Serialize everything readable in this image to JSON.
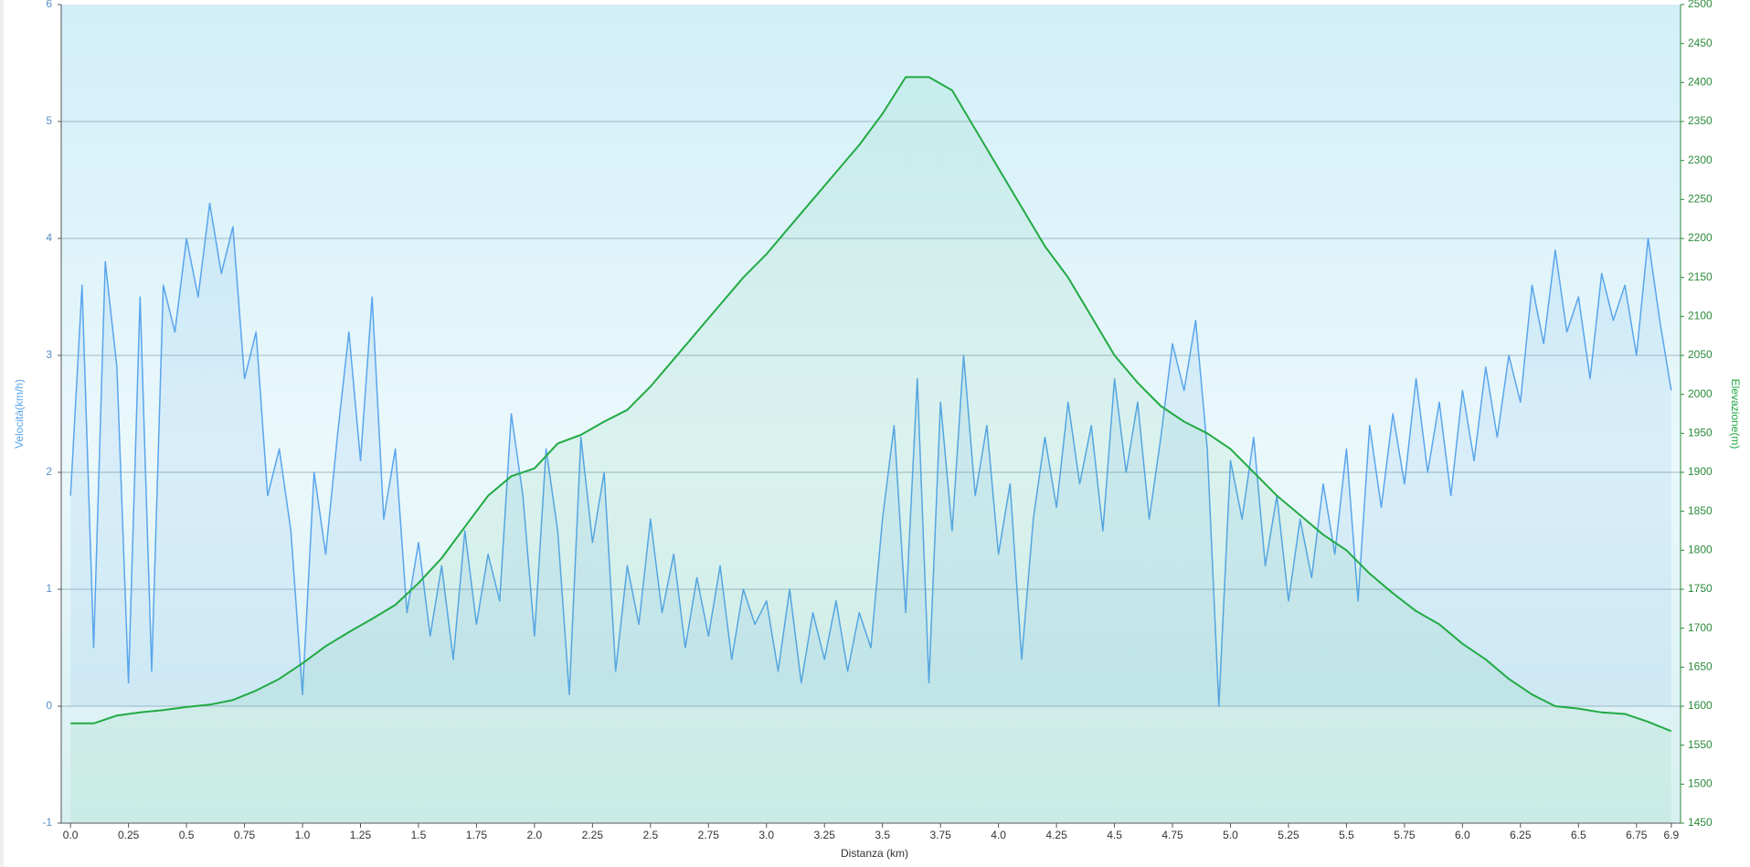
{
  "chart_data": {
    "type": "line",
    "xlabel": "Distanza  (km)",
    "ylabel": "Velocità(km/h)",
    "y2label": "Elevazione(m)",
    "xlim": [
      -0.04,
      6.94
    ],
    "xticks": [
      {
        "value": 0,
        "label": "0.0"
      },
      0.25,
      0.5,
      0.75,
      {
        "value": 1,
        "label": "1.0"
      },
      1.25,
      1.5,
      1.75,
      {
        "value": 2,
        "label": "2.0"
      },
      2.25,
      2.5,
      2.75,
      {
        "value": 3,
        "label": "3.0"
      },
      3.25,
      3.5,
      3.75,
      {
        "value": 4,
        "label": "4.0"
      },
      4.25,
      4.5,
      4.75,
      {
        "value": 5,
        "label": "5.0"
      },
      5.25,
      5.5,
      5.75,
      {
        "value": 6,
        "label": "6.0"
      },
      6.25,
      6.5,
      6.75,
      6.9
    ],
    "ylim": [
      -1,
      6
    ],
    "yticks": [
      -1,
      0,
      1,
      2,
      3,
      4,
      5,
      6
    ],
    "y2lim": [
      1450,
      2500
    ],
    "y2ticks": [
      1450,
      1500,
      1550,
      1600,
      1650,
      1700,
      1750,
      1800,
      1850,
      1900,
      1950,
      2000,
      2050,
      2100,
      2150,
      2200,
      2250,
      2300,
      2350,
      2400,
      2450,
      2500
    ],
    "grid": true,
    "series": [
      {
        "color": "#5aa5ec",
        "x": [
          0,
          0.05,
          0.1,
          0.15,
          0.2,
          0.25,
          0.3,
          0.35,
          0.4,
          0.45,
          0.5,
          0.55,
          0.6,
          0.65,
          0.7,
          0.75,
          0.8,
          0.85,
          0.9,
          0.95,
          1,
          1.05,
          1.1,
          1.15,
          1.2,
          1.25,
          1.3,
          1.35,
          1.4,
          1.45,
          1.5,
          1.55,
          1.6,
          1.65,
          1.7,
          1.75,
          1.8,
          1.85,
          1.9,
          1.95,
          2,
          2.05,
          2.1,
          2.15,
          2.2,
          2.25,
          2.3,
          2.35,
          2.4,
          2.45,
          2.5,
          2.55,
          2.6,
          2.65,
          2.7,
          2.75,
          2.8,
          2.85,
          2.9,
          2.95,
          3,
          3.05,
          3.1,
          3.15,
          3.2,
          3.25,
          3.3,
          3.35,
          3.4,
          3.45,
          3.5,
          3.55,
          3.6,
          3.65,
          3.7,
          3.75,
          3.8,
          3.85,
          3.9,
          3.95,
          4,
          4.05,
          4.1,
          4.15,
          4.2,
          4.25,
          4.3,
          4.35,
          4.4,
          4.45,
          4.5,
          4.55,
          4.6,
          4.65,
          4.7,
          4.75,
          4.8,
          4.85,
          4.9,
          4.95,
          5,
          5.05,
          5.1,
          5.15,
          5.2,
          5.25,
          5.3,
          5.35,
          5.4,
          5.45,
          5.5,
          5.55,
          5.6,
          5.65,
          5.7,
          5.75,
          5.8,
          5.85,
          5.9,
          5.95,
          6,
          6.05,
          6.1,
          6.15,
          6.2,
          6.25,
          6.3,
          6.35,
          6.4,
          6.45,
          6.5,
          6.55,
          6.6,
          6.65,
          6.7,
          6.75,
          6.8,
          6.85,
          6.9
        ],
        "values": [
          1.8,
          3.6,
          0.5,
          3.8,
          2.9,
          0.2,
          3.5,
          0.3,
          3.6,
          3.2,
          4.0,
          3.5,
          4.3,
          3.7,
          4.1,
          2.8,
          3.2,
          1.8,
          2.2,
          1.5,
          0.1,
          2.0,
          1.3,
          2.3,
          3.2,
          2.1,
          3.5,
          1.6,
          2.2,
          0.8,
          1.4,
          0.6,
          1.2,
          0.4,
          1.5,
          0.7,
          1.3,
          0.9,
          2.5,
          1.8,
          0.6,
          2.2,
          1.5,
          0.1,
          2.3,
          1.4,
          2.0,
          0.3,
          1.2,
          0.7,
          1.6,
          0.8,
          1.3,
          0.5,
          1.1,
          0.6,
          1.2,
          0.4,
          1.0,
          0.7,
          0.9,
          0.3,
          1.0,
          0.2,
          0.8,
          0.4,
          0.9,
          0.3,
          0.8,
          0.5,
          1.6,
          2.4,
          0.8,
          2.8,
          0.2,
          2.6,
          1.5,
          3.0,
          1.8,
          2.4,
          1.3,
          1.9,
          0.4,
          1.6,
          2.3,
          1.7,
          2.6,
          1.9,
          2.4,
          1.5,
          2.8,
          2.0,
          2.6,
          1.6,
          2.3,
          3.1,
          2.7,
          3.3,
          2.2,
          0.0,
          2.1,
          1.6,
          2.3,
          1.2,
          1.8,
          0.9,
          1.6,
          1.1,
          1.9,
          1.3,
          2.2,
          0.9,
          2.4,
          1.7,
          2.5,
          1.9,
          2.8,
          2.0,
          2.6,
          1.8,
          2.7,
          2.1,
          2.9,
          2.3,
          3.0,
          2.6,
          3.6,
          3.1,
          3.9,
          3.2,
          3.5,
          2.8,
          3.7,
          3.3,
          3.6,
          3.0,
          4.0,
          3.3,
          2.7
        ]
      },
      {
        "color": "#22aa44",
        "axis": "y2",
        "x": [
          0,
          0.1,
          0.2,
          0.3,
          0.4,
          0.5,
          0.6,
          0.7,
          0.8,
          0.9,
          1,
          1.1,
          1.2,
          1.3,
          1.4,
          1.5,
          1.6,
          1.7,
          1.8,
          1.9,
          2,
          2.1,
          2.2,
          2.3,
          2.4,
          2.5,
          2.6,
          2.7,
          2.8,
          2.9,
          3,
          3.1,
          3.2,
          3.3,
          3.4,
          3.5,
          3.6,
          3.7,
          3.8,
          3.9,
          4,
          4.1,
          4.2,
          4.3,
          4.4,
          4.5,
          4.6,
          4.7,
          4.8,
          4.9,
          5,
          5.1,
          5.2,
          5.3,
          5.4,
          5.5,
          5.6,
          5.7,
          5.8,
          5.9,
          6,
          6.1,
          6.2,
          6.3,
          6.4,
          6.5,
          6.6,
          6.7,
          6.8,
          6.9
        ],
        "values": [
          1578,
          1578,
          1588,
          1592,
          1595,
          1599,
          1602,
          1608,
          1620,
          1635,
          1655,
          1677,
          1695,
          1712,
          1730,
          1758,
          1790,
          1830,
          1870,
          1895,
          1905,
          1937,
          1948,
          1965,
          1980,
          2010,
          2045,
          2080,
          2115,
          2150,
          2180,
          2215,
          2250,
          2285,
          2320,
          2360,
          2407,
          2407,
          2390,
          2340,
          2290,
          2240,
          2190,
          2150,
          2100,
          2050,
          2015,
          1985,
          1965,
          1950,
          1930,
          1900,
          1870,
          1845,
          1820,
          1800,
          1770,
          1745,
          1722,
          1705,
          1680,
          1660,
          1635,
          1615,
          1600,
          1597,
          1592,
          1590,
          1580,
          1568
        ]
      }
    ]
  }
}
